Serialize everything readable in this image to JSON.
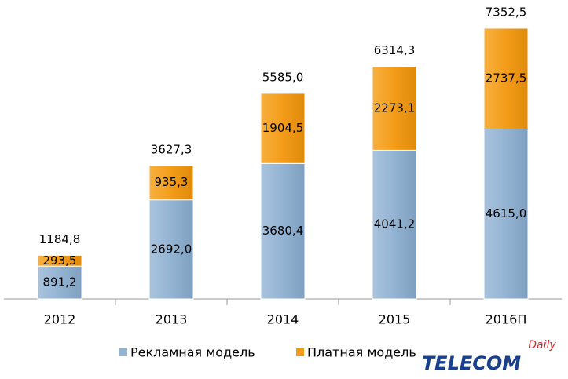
{
  "chart_data": {
    "type": "stacked_bar",
    "categories": [
      "2012",
      "2013",
      "2014",
      "2015",
      "2016П"
    ],
    "series": [
      {
        "name": "Рекламная модель",
        "color": "#93b3d3",
        "values": [
          891.2,
          2692.0,
          3680.4,
          4041.2,
          4615.0
        ],
        "value_labels": [
          "891,2",
          "2692,0",
          "3680,4",
          "4041,2",
          "4615,0"
        ]
      },
      {
        "name": "Платная модель",
        "color": "#f39c19",
        "values": [
          293.5,
          935.3,
          1904.5,
          2273.1,
          2737.5
        ],
        "value_labels": [
          "293,5",
          "935,3",
          "1904,5",
          "2273,1",
          "2737,5"
        ]
      }
    ],
    "totals": [
      1184.8,
      3627.3,
      5585.0,
      6314.3,
      7352.5
    ],
    "total_labels": [
      "1184,8",
      "3627,3",
      "5585,0",
      "6314,3",
      "7352,5"
    ],
    "legend": "bottom"
  },
  "logo": {
    "brand": "TELECOM",
    "tag": "Daily"
  }
}
